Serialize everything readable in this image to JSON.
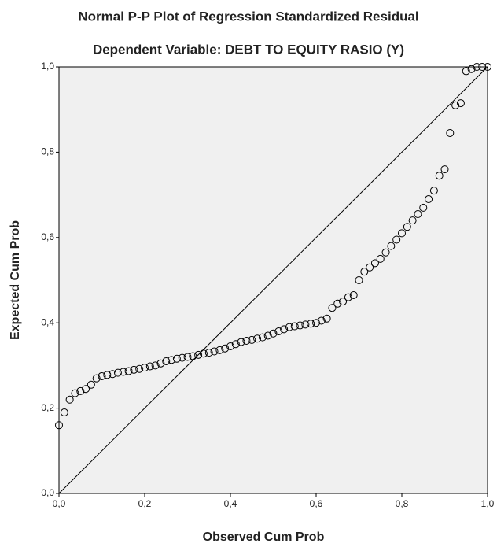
{
  "chart_data": {
    "type": "scatter",
    "title": "Normal P-P Plot of Regression Standardized Residual",
    "subtitle": "Dependent Variable: DEBT TO EQUITY RASIO (Y)",
    "xlabel": "Observed Cum Prob",
    "ylabel": "Expected Cum Prob",
    "x": [
      0,
      0.0125,
      0.025,
      0.0375,
      0.05,
      0.0625,
      0.075,
      0.0875,
      0.1,
      0.1125,
      0.125,
      0.1375,
      0.15,
      0.1625,
      0.175,
      0.1875,
      0.2,
      0.2125,
      0.225,
      0.2375,
      0.25,
      0.2625,
      0.275,
      0.2875,
      0.3,
      0.3125,
      0.325,
      0.3375,
      0.35,
      0.3625,
      0.375,
      0.3875,
      0.4,
      0.4125,
      0.425,
      0.4375,
      0.45,
      0.4625,
      0.475,
      0.4875,
      0.5,
      0.5125,
      0.525,
      0.5375,
      0.55,
      0.5625,
      0.575,
      0.5875,
      0.6,
      0.6125,
      0.625,
      0.6375,
      0.65,
      0.6625,
      0.675,
      0.6875,
      0.7,
      0.7125,
      0.725,
      0.7375,
      0.75,
      0.7625,
      0.775,
      0.7875,
      0.8,
      0.8125,
      0.825,
      0.8375,
      0.85,
      0.8625,
      0.875,
      0.8875,
      0.9,
      0.9125,
      0.925,
      0.9375,
      0.95,
      0.9625,
      0.975,
      0.9875,
      1
    ],
    "values": [
      0.16,
      0.19,
      0.22,
      0.235,
      0.24,
      0.245,
      0.255,
      0.27,
      0.275,
      0.278,
      0.28,
      0.283,
      0.285,
      0.287,
      0.29,
      0.292,
      0.295,
      0.298,
      0.3,
      0.305,
      0.31,
      0.313,
      0.316,
      0.318,
      0.32,
      0.322,
      0.325,
      0.328,
      0.33,
      0.333,
      0.336,
      0.34,
      0.345,
      0.35,
      0.355,
      0.358,
      0.36,
      0.363,
      0.366,
      0.37,
      0.375,
      0.38,
      0.385,
      0.39,
      0.392,
      0.394,
      0.396,
      0.398,
      0.4,
      0.405,
      0.41,
      0.435,
      0.445,
      0.45,
      0.46,
      0.465,
      0.5,
      0.52,
      0.53,
      0.54,
      0.55,
      0.565,
      0.58,
      0.595,
      0.61,
      0.625,
      0.64,
      0.655,
      0.67,
      0.69,
      0.71,
      0.745,
      0.76,
      0.845,
      0.91,
      0.915,
      0.99,
      0.995,
      1.0,
      1.0,
      1.0
    ],
    "color": "#000000",
    "xlim": [
      0,
      1
    ],
    "ylim": [
      0,
      1
    ],
    "xticks": [
      {
        "value": 0,
        "label": "0,0"
      },
      {
        "value": 0.2,
        "label": "0,2"
      },
      {
        "value": 0.4,
        "label": "0,4"
      },
      {
        "value": 0.6,
        "label": "0,6"
      },
      {
        "value": 0.8,
        "label": "0,8"
      },
      {
        "value": 1,
        "label": "1,0"
      }
    ],
    "yticks": [
      {
        "value": 0,
        "label": "0,0"
      },
      {
        "value": 0.2,
        "label": "0,2"
      },
      {
        "value": 0.4,
        "label": "0,4"
      },
      {
        "value": 0.6,
        "label": "0,6"
      },
      {
        "value": 0.8,
        "label": "0,8"
      },
      {
        "value": 1,
        "label": "1,0"
      }
    ]
  }
}
